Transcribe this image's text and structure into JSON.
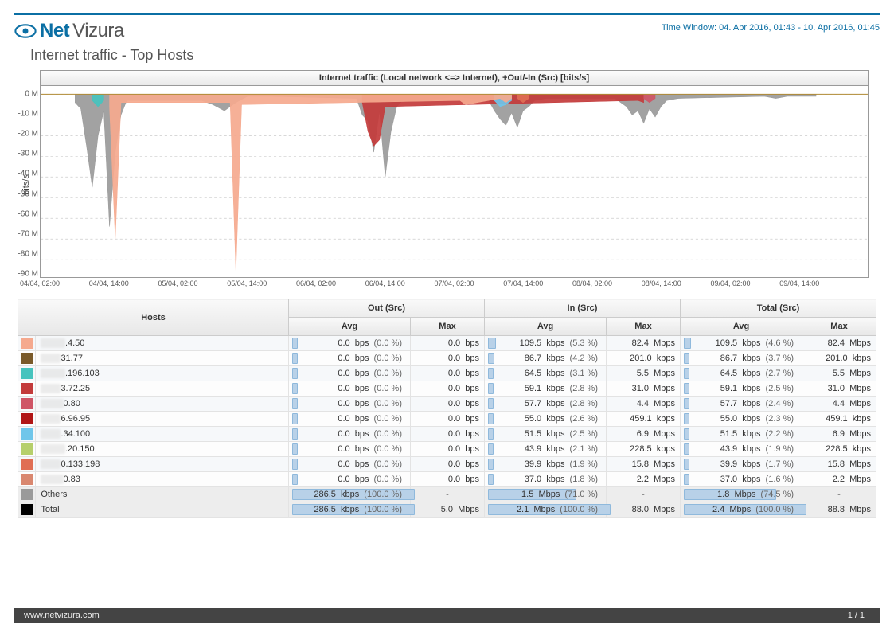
{
  "header": {
    "logo": {
      "net": "Net",
      "vizura": "Vizura"
    },
    "time_window": "Time Window: 04. Apr 2016, 01:43 - 10. Apr 2016, 01:45",
    "page_title": "Internet traffic - Top Hosts"
  },
  "chart": {
    "title": "Internet traffic (Local network <=> Internet), +Out/-In (Src) [bits/s]",
    "y_axis_label": "bits/s",
    "ylim": [
      -92,
      4
    ],
    "y_ticks": [
      {
        "v": 0,
        "label": "0 M"
      },
      {
        "v": -10,
        "label": "-10 M"
      },
      {
        "v": -20,
        "label": "-20 M"
      },
      {
        "v": -30,
        "label": "-30 M"
      },
      {
        "v": -40,
        "label": "-40 M"
      },
      {
        "v": -50,
        "label": "-50 M"
      },
      {
        "v": -60,
        "label": "-60 M"
      },
      {
        "v": -70,
        "label": "-70 M"
      },
      {
        "v": -80,
        "label": "-80 M"
      },
      {
        "v": -90,
        "label": "-90 M"
      }
    ],
    "xlim": [
      0,
      144
    ],
    "x_ticks": [
      {
        "v": 0,
        "label": "04/04, 02:00"
      },
      {
        "v": 12,
        "label": "04/04, 14:00"
      },
      {
        "v": 24,
        "label": "05/04, 02:00"
      },
      {
        "v": 36,
        "label": "05/04, 14:00"
      },
      {
        "v": 48,
        "label": "06/04, 02:00"
      },
      {
        "v": 60,
        "label": "06/04, 14:00"
      },
      {
        "v": 72,
        "label": "07/04, 02:00"
      },
      {
        "v": 84,
        "label": "07/04, 14:00"
      },
      {
        "v": 96,
        "label": "08/04, 02:00"
      },
      {
        "v": 108,
        "label": "08/04, 14:00"
      },
      {
        "v": 120,
        "label": "09/04, 02:00"
      },
      {
        "v": 132,
        "label": "09/04, 14:00"
      }
    ],
    "grid_color": "#cccccc",
    "baseline_color": "#b08a33",
    "baseline_width": 1,
    "colors": {
      "others": "#9a9a9a",
      "h0": "#f5a98e",
      "h1": "#7a5a2a",
      "h2": "#46c3be",
      "h3": "#c33b3b",
      "h4": "#cf5566",
      "h5": "#b11616",
      "h6": "#6fc6ea",
      "h7": "#b6cf6b",
      "h8": "#e06e54",
      "h9": "#d9876f",
      "total": "#000000"
    },
    "series": {
      "others": [
        {
          "x": 6,
          "y": -4
        },
        {
          "x": 7,
          "y": -7
        },
        {
          "x": 8,
          "y": -25
        },
        {
          "x": 9,
          "y": -45
        },
        {
          "x": 10,
          "y": -20
        },
        {
          "x": 11,
          "y": -8
        },
        {
          "x": 12,
          "y": -64
        },
        {
          "x": 13,
          "y": -28
        },
        {
          "x": 14,
          "y": -10
        },
        {
          "x": 15,
          "y": -3
        },
        {
          "x": 28,
          "y": -3
        },
        {
          "x": 30,
          "y": -5
        },
        {
          "x": 32,
          "y": -8
        },
        {
          "x": 33,
          "y": -6
        },
        {
          "x": 34,
          "y": -4
        },
        {
          "x": 36,
          "y": -1
        },
        {
          "x": 40,
          "y": -1
        },
        {
          "x": 55,
          "y": -2
        },
        {
          "x": 56,
          "y": -10
        },
        {
          "x": 57,
          "y": -13
        },
        {
          "x": 58,
          "y": -28
        },
        {
          "x": 59,
          "y": -8
        },
        {
          "x": 60,
          "y": -40
        },
        {
          "x": 61,
          "y": -18
        },
        {
          "x": 62,
          "y": -6
        },
        {
          "x": 63,
          "y": -3
        },
        {
          "x": 70,
          "y": -2
        },
        {
          "x": 72,
          "y": -1
        },
        {
          "x": 78,
          "y": -3
        },
        {
          "x": 79,
          "y": -8
        },
        {
          "x": 80,
          "y": -12
        },
        {
          "x": 81,
          "y": -15
        },
        {
          "x": 82,
          "y": -9
        },
        {
          "x": 83,
          "y": -16
        },
        {
          "x": 84,
          "y": -8
        },
        {
          "x": 85,
          "y": -6
        },
        {
          "x": 86,
          "y": -3
        },
        {
          "x": 88,
          "y": -2
        },
        {
          "x": 100,
          "y": -2
        },
        {
          "x": 102,
          "y": -6
        },
        {
          "x": 103,
          "y": -10
        },
        {
          "x": 104,
          "y": -8
        },
        {
          "x": 105,
          "y": -14
        },
        {
          "x": 106,
          "y": -7
        },
        {
          "x": 107,
          "y": -11
        },
        {
          "x": 108,
          "y": -6
        },
        {
          "x": 109,
          "y": -3
        },
        {
          "x": 111,
          "y": -2
        },
        {
          "x": 126,
          "y": -1
        },
        {
          "x": 128,
          "y": -2
        },
        {
          "x": 130,
          "y": -1
        },
        {
          "x": 135,
          "y": -1
        }
      ],
      "h0": [
        {
          "x": 12,
          "y": -6
        },
        {
          "x": 13,
          "y": -70
        },
        {
          "x": 14,
          "y": -4
        },
        {
          "x": 33,
          "y": -4
        },
        {
          "x": 34,
          "y": -86
        },
        {
          "x": 35,
          "y": -5
        },
        {
          "x": 73,
          "y": -3
        },
        {
          "x": 74,
          "y": -5
        },
        {
          "x": 80,
          "y": -2
        },
        {
          "x": 81,
          "y": -4
        },
        {
          "x": 82,
          "y": -2
        }
      ],
      "h3": [
        {
          "x": 56,
          "y": -4
        },
        {
          "x": 57,
          "y": -18
        },
        {
          "x": 58,
          "y": -25
        },
        {
          "x": 59,
          "y": -22
        },
        {
          "x": 60,
          "y": -6
        },
        {
          "x": 104,
          "y": -3
        },
        {
          "x": 105,
          "y": -4
        }
      ],
      "h2": [
        {
          "x": 9,
          "y": -3
        },
        {
          "x": 10,
          "y": -6
        },
        {
          "x": 11,
          "y": -3
        }
      ],
      "h6": [
        {
          "x": 79,
          "y": -3
        },
        {
          "x": 80,
          "y": -6
        },
        {
          "x": 81,
          "y": -5
        },
        {
          "x": 82,
          "y": -3
        }
      ],
      "h4": [
        {
          "x": 105,
          "y": -2
        },
        {
          "x": 106,
          "y": -4
        },
        {
          "x": 107,
          "y": -2
        }
      ],
      "h8": [
        {
          "x": 83,
          "y": -2
        },
        {
          "x": 84,
          "y": -4
        },
        {
          "x": 85,
          "y": -2
        }
      ]
    },
    "series_draw_order": [
      "others",
      "h3",
      "h6",
      "h2",
      "h4",
      "h8",
      "h0"
    ]
  },
  "table": {
    "groups": [
      {
        "label": "Out (Src)"
      },
      {
        "label": "In (Src)"
      },
      {
        "label": "Total (Src)"
      }
    ],
    "hosts_header": "Hosts",
    "sub_headers": [
      "Avg",
      "Max",
      "Avg",
      "Max",
      "Avg",
      "Max"
    ],
    "max_avg_for_bars": {
      "out": 286.5,
      "in": 2100,
      "total": 2400
    },
    "rows": [
      {
        "swatch": "h0",
        "mask": "xx xxx",
        "ip": ".4.50",
        "out_avg": {
          "v": "0.0",
          "u": "bps",
          "p": "0.0 %",
          "raw": 0
        },
        "out_max": {
          "v": "0.0",
          "u": "bps"
        },
        "in_avg": {
          "v": "109.5",
          "u": "kbps",
          "p": "5.3 %",
          "raw": 109.5
        },
        "in_max": {
          "v": "82.4",
          "u": "Mbps"
        },
        "tot_avg": {
          "v": "109.5",
          "u": "kbps",
          "p": "4.6 %",
          "raw": 109.5
        },
        "tot_max": {
          "v": "82.4",
          "u": "Mbps"
        }
      },
      {
        "swatch": "h1",
        "mask": "xx xx",
        "ip": "31.77",
        "out_avg": {
          "v": "0.0",
          "u": "bps",
          "p": "0.0 %",
          "raw": 0
        },
        "out_max": {
          "v": "0.0",
          "u": "bps"
        },
        "in_avg": {
          "v": "86.7",
          "u": "kbps",
          "p": "4.2 %",
          "raw": 86.7
        },
        "in_max": {
          "v": "201.0",
          "u": "kbps"
        },
        "tot_avg": {
          "v": "86.7",
          "u": "kbps",
          "p": "3.7 %",
          "raw": 86.7
        },
        "tot_max": {
          "v": "201.0",
          "u": "kbps"
        }
      },
      {
        "swatch": "h2",
        "mask": "xxx xx",
        "ip": ".196.103",
        "out_avg": {
          "v": "0.0",
          "u": "bps",
          "p": "0.0 %",
          "raw": 0
        },
        "out_max": {
          "v": "0.0",
          "u": "bps"
        },
        "in_avg": {
          "v": "64.5",
          "u": "kbps",
          "p": "3.1 %",
          "raw": 64.5
        },
        "in_max": {
          "v": "5.5",
          "u": "Mbps"
        },
        "tot_avg": {
          "v": "64.5",
          "u": "kbps",
          "p": "2.7 %",
          "raw": 64.5
        },
        "tot_max": {
          "v": "5.5",
          "u": "Mbps"
        }
      },
      {
        "swatch": "h3",
        "mask": "xxx x",
        "ip": "3.72.25",
        "out_avg": {
          "v": "0.0",
          "u": "bps",
          "p": "0.0 %",
          "raw": 0
        },
        "out_max": {
          "v": "0.0",
          "u": "bps"
        },
        "in_avg": {
          "v": "59.1",
          "u": "kbps",
          "p": "2.8 %",
          "raw": 59.1
        },
        "in_max": {
          "v": "31.0",
          "u": "Mbps"
        },
        "tot_avg": {
          "v": "59.1",
          "u": "kbps",
          "p": "2.5 %",
          "raw": 59.1
        },
        "tot_max": {
          "v": "31.0",
          "u": "Mbps"
        }
      },
      {
        "swatch": "h4",
        "mask": "x xx x",
        "ip": "0.80",
        "out_avg": {
          "v": "0.0",
          "u": "bps",
          "p": "0.0 %",
          "raw": 0
        },
        "out_max": {
          "v": "0.0",
          "u": "bps"
        },
        "in_avg": {
          "v": "57.7",
          "u": "kbps",
          "p": "2.8 %",
          "raw": 57.7
        },
        "in_max": {
          "v": "4.4",
          "u": "Mbps"
        },
        "tot_avg": {
          "v": "57.7",
          "u": "kbps",
          "p": "2.4 %",
          "raw": 57.7
        },
        "tot_max": {
          "v": "4.4",
          "u": "Mbps"
        }
      },
      {
        "swatch": "h5",
        "mask": "xxx x",
        "ip": "6.96.95",
        "out_avg": {
          "v": "0.0",
          "u": "bps",
          "p": "0.0 %",
          "raw": 0
        },
        "out_max": {
          "v": "0.0",
          "u": "bps"
        },
        "in_avg": {
          "v": "55.0",
          "u": "kbps",
          "p": "2.6 %",
          "raw": 55.0
        },
        "in_max": {
          "v": "459.1",
          "u": "kbps"
        },
        "tot_avg": {
          "v": "55.0",
          "u": "kbps",
          "p": "2.3 %",
          "raw": 55.0
        },
        "tot_max": {
          "v": "459.1",
          "u": "kbps"
        }
      },
      {
        "swatch": "h6",
        "mask": "xx xx",
        "ip": ".34.100",
        "out_avg": {
          "v": "0.0",
          "u": "bps",
          "p": "0.0 %",
          "raw": 0
        },
        "out_max": {
          "v": "0.0",
          "u": "bps"
        },
        "in_avg": {
          "v": "51.5",
          "u": "kbps",
          "p": "2.5 %",
          "raw": 51.5
        },
        "in_max": {
          "v": "6.9",
          "u": "Mbps"
        },
        "tot_avg": {
          "v": "51.5",
          "u": "kbps",
          "p": "2.2 %",
          "raw": 51.5
        },
        "tot_max": {
          "v": "6.9",
          "u": "Mbps"
        }
      },
      {
        "swatch": "h7",
        "mask": "xxx xx",
        "ip": ".20.150",
        "out_avg": {
          "v": "0.0",
          "u": "bps",
          "p": "0.0 %",
          "raw": 0
        },
        "out_max": {
          "v": "0.0",
          "u": "bps"
        },
        "in_avg": {
          "v": "43.9",
          "u": "kbps",
          "p": "2.1 %",
          "raw": 43.9
        },
        "in_max": {
          "v": "228.5",
          "u": "kbps"
        },
        "tot_avg": {
          "v": "43.9",
          "u": "kbps",
          "p": "1.9 %",
          "raw": 43.9
        },
        "tot_max": {
          "v": "228.5",
          "u": "kbps"
        }
      },
      {
        "swatch": "h8",
        "mask": "xx xx",
        "ip": "0.133.198",
        "out_avg": {
          "v": "0.0",
          "u": "bps",
          "p": "0.0 %",
          "raw": 0
        },
        "out_max": {
          "v": "0.0",
          "u": "bps"
        },
        "in_avg": {
          "v": "39.9",
          "u": "kbps",
          "p": "1.9 %",
          "raw": 39.9
        },
        "in_max": {
          "v": "15.8",
          "u": "Mbps"
        },
        "tot_avg": {
          "v": "39.9",
          "u": "kbps",
          "p": "1.7 %",
          "raw": 39.9
        },
        "tot_max": {
          "v": "15.8",
          "u": "Mbps"
        }
      },
      {
        "swatch": "h9",
        "mask": "x xx x",
        "ip": "0.83",
        "out_avg": {
          "v": "0.0",
          "u": "bps",
          "p": "0.0 %",
          "raw": 0
        },
        "out_max": {
          "v": "0.0",
          "u": "bps"
        },
        "in_avg": {
          "v": "37.0",
          "u": "kbps",
          "p": "1.8 %",
          "raw": 37.0
        },
        "in_max": {
          "v": "2.2",
          "u": "Mbps"
        },
        "tot_avg": {
          "v": "37.0",
          "u": "kbps",
          "p": "1.6 %",
          "raw": 37.0
        },
        "tot_max": {
          "v": "2.2",
          "u": "Mbps"
        }
      }
    ],
    "others_row": {
      "label": "Others",
      "swatch": "others",
      "out_avg": {
        "v": "286.5",
        "u": "kbps",
        "p": "100.0 %",
        "raw": 286.5
      },
      "out_max": {
        "v": "-",
        "u": ""
      },
      "in_avg": {
        "v": "1.5",
        "u": "Mbps",
        "p": "71.0 %",
        "raw": 1500
      },
      "in_max": {
        "v": "-",
        "u": ""
      },
      "tot_avg": {
        "v": "1.8",
        "u": "Mbps",
        "p": "74.5 %",
        "raw": 1800
      },
      "tot_max": {
        "v": "-",
        "u": ""
      }
    },
    "total_row": {
      "label": "Total",
      "swatch": "total",
      "out_avg": {
        "v": "286.5",
        "u": "kbps",
        "p": "100.0 %",
        "raw": 286.5
      },
      "out_max": {
        "v": "5.0",
        "u": "Mbps"
      },
      "in_avg": {
        "v": "2.1",
        "u": "Mbps",
        "p": "100.0 %",
        "raw": 2100
      },
      "in_max": {
        "v": "88.0",
        "u": "Mbps"
      },
      "tot_avg": {
        "v": "2.4",
        "u": "Mbps",
        "p": "100.0 %",
        "raw": 2400
      },
      "tot_max": {
        "v": "88.8",
        "u": "Mbps"
      }
    }
  },
  "footer": {
    "url": "www.netvizura.com",
    "page": "1",
    "total": "1"
  }
}
